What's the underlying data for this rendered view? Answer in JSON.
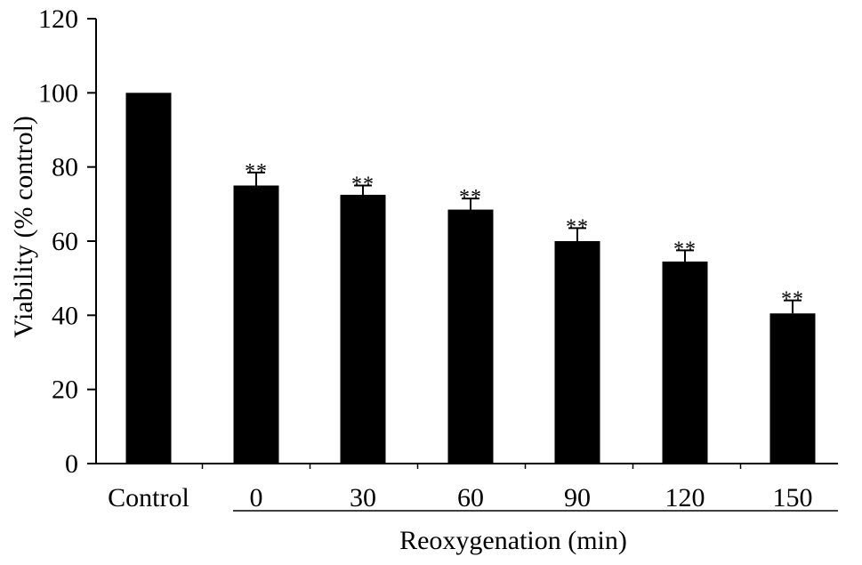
{
  "chart_data": {
    "type": "bar",
    "categories": [
      "Control",
      "0",
      "30",
      "60",
      "90",
      "120",
      "150"
    ],
    "values": [
      100,
      75,
      72.5,
      68.5,
      60,
      54.5,
      40.5
    ],
    "errors": [
      0,
      3.5,
      2.5,
      3,
      3.5,
      3,
      3.5
    ],
    "significance": [
      "",
      "**",
      "**",
      "**",
      "**",
      "**",
      "**"
    ],
    "title": "",
    "xlabel": "Reoxygenation (min)",
    "ylabel": "Viability (% control)",
    "ylim": [
      0,
      120
    ],
    "yticks": [
      0,
      20,
      40,
      60,
      80,
      100,
      120
    ],
    "grid": false,
    "bar_color": "#000000"
  }
}
